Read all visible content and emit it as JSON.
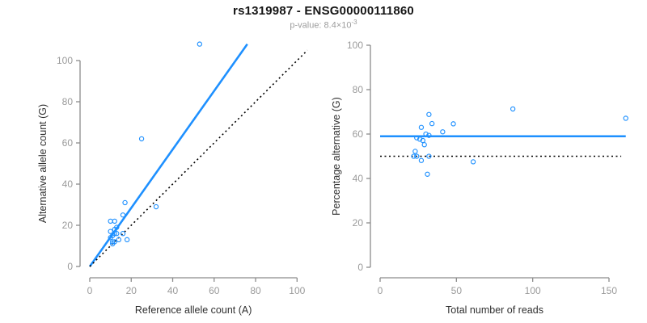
{
  "header": {
    "title": "rs1319987 - ENSG00000111860",
    "pvalue_label": "p-value: 8.4×10",
    "pvalue_exponent": "-3"
  },
  "colors": {
    "point_blue": "#1E90FF",
    "line_blue": "#1E90FF",
    "dotted_black": "#000000",
    "axis_gray": "#8C8C8C",
    "tick_label_gray": "#9A9A9A",
    "axis_title_dark": "#303030",
    "background": "#FFFFFF"
  },
  "chart_data": [
    {
      "type": "scatter",
      "panel": "left",
      "marker": "open-circle",
      "xlabel": "Reference allele count (A)",
      "ylabel": "Alternative allele count (G)",
      "xlim": [
        0,
        100
      ],
      "ylim": [
        0,
        100
      ],
      "xticks": [
        0,
        20,
        40,
        60,
        80,
        100
      ],
      "yticks": [
        0,
        20,
        40,
        60,
        80,
        100
      ],
      "grid": false,
      "legend": "none",
      "points": [
        [
          53,
          108
        ],
        [
          25,
          62
        ],
        [
          17,
          31
        ],
        [
          32,
          29
        ],
        [
          16,
          25
        ],
        [
          10,
          22
        ],
        [
          12,
          22
        ],
        [
          10,
          17
        ],
        [
          12,
          18
        ],
        [
          10,
          14
        ],
        [
          11,
          15
        ],
        [
          13,
          19
        ],
        [
          12,
          16
        ],
        [
          13,
          16
        ],
        [
          11,
          12
        ],
        [
          11,
          11
        ],
        [
          12,
          12
        ],
        [
          16,
          16
        ],
        [
          14,
          13
        ],
        [
          18,
          13
        ]
      ],
      "lines": [
        {
          "name": "regression-line",
          "style": "solid",
          "color_key": "line_blue",
          "from": [
            0,
            0
          ],
          "to": [
            76,
            108
          ]
        },
        {
          "name": "identity-line",
          "style": "dotted",
          "color_key": "dotted_black",
          "from": [
            0,
            0
          ],
          "to": [
            105,
            105
          ]
        }
      ]
    },
    {
      "type": "scatter",
      "panel": "right",
      "marker": "open-circle",
      "xlabel": "Total number of reads",
      "ylabel": "Percentage alternative (G)",
      "xlim": [
        0,
        150
      ],
      "ylim": [
        0,
        100
      ],
      "xticks": [
        0,
        50,
        100,
        150
      ],
      "yticks": [
        0,
        20,
        40,
        60,
        80,
        100
      ],
      "grid": false,
      "legend": "none",
      "points": [
        [
          161,
          67.1
        ],
        [
          87,
          71.3
        ],
        [
          48,
          64.6
        ],
        [
          61,
          47.5
        ],
        [
          41,
          61.0
        ],
        [
          32,
          68.8
        ],
        [
          34,
          64.7
        ],
        [
          27,
          63.0
        ],
        [
          30,
          60.0
        ],
        [
          24,
          58.3
        ],
        [
          26,
          57.7
        ],
        [
          32,
          59.4
        ],
        [
          28,
          57.1
        ],
        [
          29,
          55.2
        ],
        [
          23,
          52.2
        ],
        [
          22,
          50.0
        ],
        [
          24,
          50.0
        ],
        [
          32,
          50.0
        ],
        [
          27,
          48.1
        ],
        [
          31,
          41.9
        ]
      ],
      "lines": [
        {
          "name": "mean-percentage-line",
          "style": "solid",
          "color_key": "line_blue",
          "from": [
            0,
            59
          ],
          "to": [
            161,
            59
          ]
        },
        {
          "name": "fifty-percent-line",
          "style": "dotted",
          "color_key": "dotted_black",
          "from": [
            0,
            50
          ],
          "to": [
            158,
            50
          ]
        }
      ]
    }
  ]
}
